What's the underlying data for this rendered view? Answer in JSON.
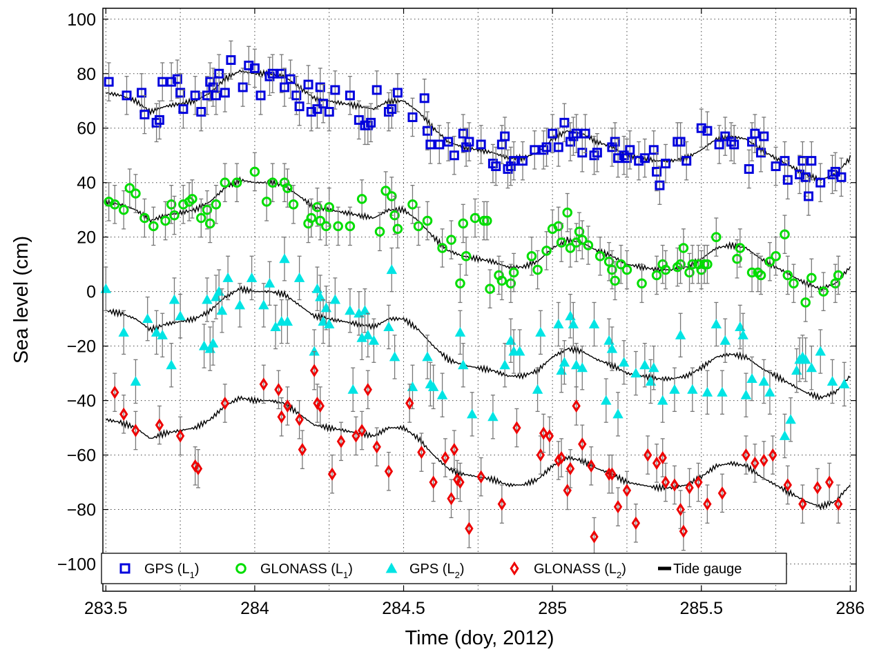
{
  "chart_data": {
    "type": "scatter",
    "xlabel": "Time (doy, 2012)",
    "ylabel": "Sea level (cm)",
    "xlim": [
      283.49,
      286.02
    ],
    "ylim": [
      -110,
      104
    ],
    "xticks": [
      283.5,
      284,
      284.5,
      285,
      285.5,
      286
    ],
    "xtick_labels": [
      "283.5",
      "284",
      "284.5",
      "285",
      "285.5",
      "286"
    ],
    "yticks": [
      -100,
      -80,
      -60,
      -40,
      -20,
      0,
      20,
      40,
      60,
      80,
      100
    ],
    "ytick_labels": [
      "−100",
      "−80",
      "−60",
      "−40",
      "−20",
      "0",
      "20",
      "40",
      "60",
      "80",
      "100"
    ],
    "grid": true,
    "legend_position": "bottom",
    "series": [
      {
        "name": "GPS (L1)",
        "legend_main": "GPS (L",
        "legend_sub": "1",
        "legend_tail": ")",
        "marker": "square",
        "color": "#0000dd",
        "error_bar": 7,
        "x": [
          283.51,
          283.57,
          283.62,
          283.63,
          283.67,
          283.68,
          283.69,
          283.72,
          283.74,
          283.75,
          283.76,
          283.8,
          283.82,
          283.84,
          283.85,
          283.86,
          283.87,
          283.88,
          283.9,
          283.92,
          283.96,
          283.98,
          284.0,
          284.02,
          284.05,
          284.06,
          284.09,
          284.1,
          284.12,
          284.14,
          284.15,
          284.18,
          284.19,
          284.21,
          284.22,
          284.23,
          284.25,
          284.27,
          284.32,
          284.35,
          284.37,
          284.38,
          284.39,
          284.41,
          284.45,
          284.46,
          284.48,
          284.53,
          284.57,
          284.58,
          284.59,
          284.62,
          284.65,
          284.67,
          284.7,
          284.71,
          284.72,
          284.76,
          284.8,
          284.81,
          284.83,
          284.84,
          284.85,
          284.86,
          284.87,
          284.9,
          284.94,
          284.97,
          284.98,
          285.0,
          285.02,
          285.04,
          285.06,
          285.07,
          285.08,
          285.1,
          285.11,
          285.14,
          285.15,
          285.2,
          285.21,
          285.22,
          285.24,
          285.25,
          285.26,
          285.29,
          285.31,
          285.34,
          285.35,
          285.36,
          285.38,
          285.42,
          285.43,
          285.45,
          285.5,
          285.52,
          285.56,
          285.58,
          285.6,
          285.61,
          285.66,
          285.67,
          285.68,
          285.7,
          285.71,
          285.75,
          285.78,
          285.79,
          285.83,
          285.84,
          285.85,
          285.86,
          285.87,
          285.9,
          285.94,
          285.95,
          285.97
        ],
        "y": [
          77,
          72,
          73,
          65,
          62,
          63,
          77,
          77,
          78,
          73,
          67,
          72,
          66,
          72,
          77,
          75,
          72,
          80,
          73,
          85,
          75,
          83,
          82,
          72,
          79,
          80,
          80,
          75,
          78,
          72,
          68,
          76,
          66,
          67,
          75,
          69,
          66,
          74,
          72,
          63,
          61,
          61,
          62,
          74,
          66,
          67,
          73,
          64,
          71,
          59,
          54,
          54,
          55,
          50,
          58,
          53,
          55,
          54,
          47,
          46,
          54,
          57,
          45,
          46,
          48,
          48,
          52,
          52,
          53,
          58,
          53,
          62,
          55,
          57,
          58,
          51,
          58,
          50,
          51,
          53,
          55,
          49,
          50,
          49,
          52,
          48,
          49,
          52,
          44,
          39,
          47,
          55,
          55,
          48,
          60,
          59,
          54,
          57,
          55,
          54,
          45,
          55,
          58,
          51,
          57,
          46,
          48,
          41,
          43,
          48,
          42,
          35,
          48,
          40,
          43,
          44,
          42
        ]
      },
      {
        "name": "GLONASS (L1)",
        "legend_main": "GLONASS (L",
        "legend_sub": "1",
        "legend_tail": ")",
        "marker": "circle",
        "color": "#00dd00",
        "error_bar": 7,
        "x": [
          283.51,
          283.53,
          283.56,
          283.58,
          283.6,
          283.63,
          283.66,
          283.7,
          283.72,
          283.73,
          283.76,
          283.78,
          283.79,
          283.82,
          283.84,
          283.85,
          283.87,
          283.9,
          283.94,
          284.0,
          284.04,
          284.06,
          284.1,
          284.11,
          284.13,
          284.18,
          284.19,
          284.21,
          284.22,
          284.24,
          284.25,
          284.28,
          284.32,
          284.36,
          284.42,
          284.44,
          284.46,
          284.47,
          284.48,
          284.53,
          284.55,
          284.58,
          284.63,
          284.66,
          284.69,
          284.7,
          284.71,
          284.74,
          284.77,
          284.78,
          284.79,
          284.82,
          284.83,
          284.86,
          284.87,
          284.93,
          284.95,
          284.98,
          285.0,
          285.02,
          285.03,
          285.05,
          285.06,
          285.08,
          285.09,
          285.1,
          285.12,
          285.16,
          285.19,
          285.2,
          285.21,
          285.23,
          285.25,
          285.3,
          285.35,
          285.37,
          285.38,
          285.42,
          285.43,
          285.44,
          285.46,
          285.47,
          285.49,
          285.5,
          285.51,
          285.52,
          285.55,
          285.62,
          285.63,
          285.67,
          285.69,
          285.7,
          285.73,
          285.75,
          285.78,
          285.79,
          285.81,
          285.85,
          285.87,
          285.91,
          285.95,
          285.96
        ],
        "y": [
          33,
          32,
          30,
          38,
          36,
          27,
          24,
          26,
          32,
          28,
          32,
          33,
          34,
          27,
          30,
          25,
          32,
          40,
          40,
          44,
          33,
          40,
          40,
          38,
          32,
          25,
          27,
          31,
          26,
          24,
          31,
          24,
          24,
          34,
          22,
          37,
          35,
          28,
          23,
          32,
          24,
          26,
          16,
          19,
          3,
          25,
          13,
          27,
          26,
          26,
          1,
          6,
          4,
          3,
          7,
          13,
          8,
          15,
          23,
          24,
          18,
          29,
          16,
          18,
          22,
          19,
          17,
          13,
          11,
          8,
          4,
          10,
          8,
          3,
          6,
          10,
          8,
          9,
          10,
          16,
          7,
          10,
          10,
          8,
          10,
          10,
          20,
          12,
          16,
          7,
          7,
          6,
          11,
          13,
          21,
          6,
          3,
          -4,
          5,
          0,
          3,
          6
        ]
      },
      {
        "name": "GPS (L2)",
        "legend_main": "GPS (L",
        "legend_sub": "2",
        "legend_tail": ")",
        "marker": "triangle",
        "color": "#00e4e4",
        "error_bar": 8,
        "x": [
          283.5,
          283.56,
          283.6,
          283.64,
          283.67,
          283.69,
          283.72,
          283.73,
          283.75,
          283.83,
          283.84,
          283.85,
          283.86,
          283.87,
          283.88,
          283.89,
          283.91,
          283.95,
          283.99,
          284.03,
          284.05,
          284.07,
          284.09,
          284.1,
          284.11,
          284.15,
          284.2,
          284.21,
          284.22,
          284.23,
          284.24,
          284.25,
          284.27,
          284.32,
          284.33,
          284.35,
          284.36,
          284.37,
          284.38,
          284.4,
          284.45,
          284.46,
          284.47,
          284.53,
          284.58,
          284.59,
          284.6,
          284.63,
          284.69,
          284.7,
          284.73,
          284.8,
          284.84,
          284.86,
          284.87,
          284.89,
          284.95,
          284.96,
          285.02,
          285.03,
          285.04,
          285.06,
          285.07,
          285.08,
          285.1,
          285.14,
          285.18,
          285.19,
          285.2,
          285.22,
          285.24,
          285.28,
          285.31,
          285.33,
          285.34,
          285.37,
          285.41,
          285.43,
          285.47,
          285.52,
          285.55,
          285.57,
          285.58,
          285.63,
          285.64,
          285.65,
          285.67,
          285.71,
          285.73,
          285.78,
          285.8,
          285.82,
          285.83,
          285.84,
          285.85,
          285.87,
          285.9,
          285.94,
          285.98
        ],
        "y": [
          1,
          -15,
          -33,
          -10,
          -15,
          -16,
          -27,
          -3,
          -9,
          -20,
          -3,
          -21,
          -19,
          -2,
          0,
          -7,
          5,
          -5,
          5,
          -5,
          3,
          -13,
          -11,
          12,
          -11,
          5,
          -22,
          1,
          -2,
          -11,
          -6,
          -12,
          -3,
          -7,
          -36,
          -8,
          -17,
          -7,
          -16,
          -18,
          -13,
          8,
          -24,
          -35,
          -24,
          -34,
          -35,
          -38,
          -15,
          -27,
          -45,
          -46,
          -27,
          -18,
          -22,
          -22,
          -36,
          -15,
          -12,
          -29,
          -26,
          -9,
          -12,
          -27,
          -28,
          -12,
          -40,
          -18,
          -21,
          -45,
          -26,
          -30,
          -27,
          -33,
          -28,
          -40,
          -36,
          -16,
          -36,
          -37,
          -12,
          -37,
          -18,
          -13,
          -16,
          -38,
          -32,
          -33,
          -37,
          -53,
          -47,
          -29,
          -25,
          -24,
          -25,
          -28,
          -22,
          -33,
          -34
        ]
      },
      {
        "name": "GLONASS (L2)",
        "legend_main": "GLONASS (L",
        "legend_sub": "2",
        "legend_tail": ")",
        "marker": "diamond",
        "color": "#ee0000",
        "error_bar": 7,
        "x": [
          283.53,
          283.56,
          283.6,
          283.68,
          283.75,
          283.8,
          283.81,
          283.9,
          284.03,
          284.08,
          284.09,
          284.11,
          284.15,
          284.16,
          284.2,
          284.21,
          284.22,
          284.26,
          284.29,
          284.34,
          284.36,
          284.38,
          284.41,
          284.45,
          284.52,
          284.56,
          284.6,
          284.64,
          284.66,
          284.67,
          284.68,
          284.69,
          284.72,
          284.76,
          284.83,
          284.88,
          284.96,
          284.97,
          284.99,
          285.02,
          285.03,
          285.05,
          285.06,
          285.08,
          285.1,
          285.13,
          285.14,
          285.19,
          285.2,
          285.22,
          285.25,
          285.28,
          285.32,
          285.35,
          285.37,
          285.38,
          285.41,
          285.43,
          285.44,
          285.46,
          285.49,
          285.52,
          285.57,
          285.65,
          285.68,
          285.71,
          285.74,
          285.79,
          285.84,
          285.89,
          285.93,
          285.96
        ],
        "y": [
          -37,
          -45,
          -51,
          -49,
          -53,
          -64,
          -65,
          -41,
          -34,
          -36,
          -46,
          -42,
          -47,
          -58,
          -29,
          -41,
          -42,
          -67,
          -55,
          -53,
          -51,
          -36,
          -57,
          -66,
          -41,
          -59,
          -70,
          -61,
          -76,
          -58,
          -69,
          -70,
          -87,
          -68,
          -78,
          -50,
          -60,
          -52,
          -53,
          -62,
          -61,
          -73,
          -65,
          -42,
          -56,
          -64,
          -90,
          -67,
          -67,
          -79,
          -73,
          -85,
          -60,
          -63,
          -61,
          -70,
          -71,
          -80,
          -88,
          -72,
          -70,
          -78,
          -74,
          -60,
          -63,
          -62,
          -60,
          -71,
          -78,
          -72,
          -70,
          -78
        ]
      },
      {
        "name": "Tide gauge",
        "legend_main": "Tide gauge",
        "legend_sub": "",
        "legend_tail": "",
        "marker": "line",
        "color": "#000000",
        "x": [
          283.5,
          283.55,
          283.6,
          283.65,
          283.7,
          283.75,
          283.8,
          283.85,
          283.9,
          283.95,
          284.0,
          284.05,
          284.1,
          284.15,
          284.2,
          284.25,
          284.3,
          284.35,
          284.4,
          284.45,
          284.5,
          284.55,
          284.6,
          284.65,
          284.7,
          284.75,
          284.8,
          284.85,
          284.9,
          284.95,
          285.0,
          285.05,
          285.1,
          285.15,
          285.2,
          285.25,
          285.3,
          285.35,
          285.4,
          285.45,
          285.5,
          285.55,
          285.6,
          285.65,
          285.7,
          285.75,
          285.8,
          285.85,
          285.9,
          285.95,
          286.0
        ],
        "y": [
          73,
          72,
          70,
          66,
          68,
          69,
          70,
          73,
          78,
          81,
          80,
          80,
          79,
          75,
          71,
          70,
          69,
          68,
          67,
          70,
          70,
          66,
          60,
          55,
          53,
          52,
          51,
          49,
          49,
          51,
          56,
          59,
          58,
          55,
          53,
          50,
          49,
          48,
          48,
          49,
          52,
          56,
          57,
          56,
          52,
          49,
          46,
          43,
          41,
          43,
          49
        ],
        "offsets": [
          0,
          -40,
          -80,
          -120
        ]
      }
    ]
  }
}
